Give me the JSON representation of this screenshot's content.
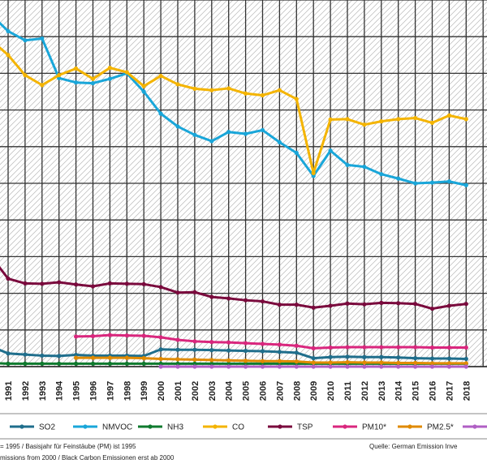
{
  "chart_data": {
    "type": "line",
    "title": "",
    "xlabel": "",
    "ylabel": "",
    "x": [
      "1991",
      "1992",
      "1993",
      "1994",
      "1995",
      "1996",
      "1997",
      "1998",
      "1999",
      "2000",
      "2001",
      "2002",
      "2003",
      "2004",
      "2005",
      "2006",
      "2007",
      "2008",
      "2009",
      "2010",
      "2011",
      "2012",
      "2013",
      "2014",
      "2015",
      "2016",
      "2017",
      "2018"
    ],
    "x_range": [
      1990,
      2018
    ],
    "ylim": [
      0,
      100
    ],
    "grid": true,
    "hatched_background": true,
    "legend_position": "bottom",
    "series": [
      {
        "name": "SO2",
        "color": "#1f6e8c",
        "values": [
          [
            1990,
            5.5
          ],
          [
            1991,
            3.6
          ],
          [
            1992,
            3.3
          ],
          [
            1993,
            3.0
          ],
          [
            1994,
            2.9
          ],
          [
            1995,
            3.2
          ],
          [
            1996,
            3.0
          ],
          [
            1997,
            3.0
          ],
          [
            1998,
            3.0
          ],
          [
            1999,
            2.9
          ],
          [
            2000,
            4.7
          ],
          [
            2001,
            4.6
          ],
          [
            2002,
            4.6
          ],
          [
            2003,
            4.5
          ],
          [
            2004,
            4.4
          ],
          [
            2005,
            4.3
          ],
          [
            2006,
            4.2
          ],
          [
            2007,
            4.0
          ],
          [
            2008,
            3.8
          ],
          [
            2009,
            2.3
          ],
          [
            2010,
            2.6
          ],
          [
            2011,
            2.7
          ],
          [
            2012,
            2.6
          ],
          [
            2013,
            2.6
          ],
          [
            2014,
            2.5
          ],
          [
            2015,
            2.3
          ],
          [
            2016,
            2.2
          ],
          [
            2017,
            2.2
          ],
          [
            2018,
            2.1
          ]
        ]
      },
      {
        "name": "NMVOC",
        "color": "#19a6d9",
        "values": [
          [
            1990,
            96.0
          ],
          [
            1991,
            91.5
          ],
          [
            1992,
            89.0
          ],
          [
            1993,
            89.5
          ],
          [
            1994,
            78.7
          ],
          [
            1995,
            77.5
          ],
          [
            1996,
            77.3
          ],
          [
            1997,
            78.5
          ],
          [
            1998,
            80.0
          ],
          [
            1999,
            75.0
          ],
          [
            2000,
            69.0
          ],
          [
            2001,
            65.5
          ],
          [
            2002,
            63.2
          ],
          [
            2003,
            61.5
          ],
          [
            2004,
            64.0
          ],
          [
            2005,
            63.5
          ],
          [
            2006,
            64.5
          ],
          [
            2007,
            61.2
          ],
          [
            2008,
            58.3
          ],
          [
            2009,
            52.0
          ],
          [
            2010,
            58.9
          ],
          [
            2011,
            55.0
          ],
          [
            2012,
            54.5
          ],
          [
            2013,
            52.5
          ],
          [
            2014,
            51.3
          ],
          [
            2015,
            50.0
          ],
          [
            2016,
            50.2
          ],
          [
            2017,
            50.5
          ],
          [
            2018,
            49.5
          ]
        ]
      },
      {
        "name": "NH3",
        "color": "#0f7a2e",
        "values": [
          [
            1990,
            1.0
          ],
          [
            1991,
            0.8
          ],
          [
            1992,
            0.8
          ],
          [
            1993,
            0.8
          ],
          [
            1994,
            0.8
          ],
          [
            1995,
            0.8
          ],
          [
            1996,
            0.8
          ],
          [
            1997,
            0.8
          ],
          [
            1998,
            0.8
          ],
          [
            1999,
            0.8
          ],
          [
            2000,
            0.8
          ],
          [
            2001,
            0.8
          ],
          [
            2002,
            0.8
          ],
          [
            2003,
            0.8
          ],
          [
            2004,
            0.8
          ],
          [
            2005,
            0.8
          ],
          [
            2006,
            0.8
          ],
          [
            2007,
            0.8
          ],
          [
            2008,
            0.8
          ],
          [
            2009,
            0.8
          ],
          [
            2010,
            0.8
          ],
          [
            2011,
            0.8
          ],
          [
            2012,
            0.8
          ],
          [
            2013,
            0.8
          ],
          [
            2014,
            0.8
          ],
          [
            2015,
            0.8
          ],
          [
            2016,
            0.8
          ],
          [
            2017,
            0.8
          ],
          [
            2018,
            0.8
          ]
        ]
      },
      {
        "name": "CO",
        "color": "#f4b400",
        "values": [
          [
            1990,
            89.0
          ],
          [
            1991,
            85.0
          ],
          [
            1992,
            79.5
          ],
          [
            1993,
            76.8
          ],
          [
            1994,
            79.5
          ],
          [
            1995,
            81.3
          ],
          [
            1996,
            78.5
          ],
          [
            1997,
            81.5
          ],
          [
            1998,
            80.3
          ],
          [
            1999,
            76.5
          ],
          [
            2000,
            79.3
          ],
          [
            2001,
            77.0
          ],
          [
            2002,
            75.8
          ],
          [
            2003,
            75.4
          ],
          [
            2004,
            75.9
          ],
          [
            2005,
            74.5
          ],
          [
            2006,
            74.0
          ],
          [
            2007,
            75.4
          ],
          [
            2008,
            73.0
          ],
          [
            2009,
            52.8
          ],
          [
            2010,
            67.4
          ],
          [
            2011,
            67.5
          ],
          [
            2012,
            66.0
          ],
          [
            2013,
            66.9
          ],
          [
            2014,
            67.5
          ],
          [
            2015,
            67.8
          ],
          [
            2016,
            66.5
          ],
          [
            2017,
            68.5
          ],
          [
            2018,
            67.5
          ]
        ]
      },
      {
        "name": "TSP",
        "color": "#7a0a3d",
        "values": [
          [
            1990,
            30.0
          ],
          [
            1991,
            24.0
          ],
          [
            1992,
            22.7
          ],
          [
            1993,
            22.6
          ],
          [
            1994,
            23.0
          ],
          [
            1995,
            22.4
          ],
          [
            1996,
            21.9
          ],
          [
            1997,
            22.7
          ],
          [
            1998,
            22.6
          ],
          [
            1999,
            22.5
          ],
          [
            2000,
            21.7
          ],
          [
            2001,
            20.2
          ],
          [
            2002,
            20.3
          ],
          [
            2003,
            19.0
          ],
          [
            2004,
            18.6
          ],
          [
            2005,
            18.1
          ],
          [
            2006,
            17.8
          ],
          [
            2007,
            16.9
          ],
          [
            2008,
            16.9
          ],
          [
            2009,
            16.1
          ],
          [
            2010,
            16.6
          ],
          [
            2011,
            17.2
          ],
          [
            2012,
            17.0
          ],
          [
            2013,
            17.4
          ],
          [
            2014,
            17.3
          ],
          [
            2015,
            17.1
          ],
          [
            2016,
            15.8
          ],
          [
            2017,
            16.6
          ],
          [
            2018,
            17.1
          ]
        ]
      },
      {
        "name": "PM10*",
        "color": "#d9267d",
        "values": [
          [
            1995,
            8.2
          ],
          [
            1996,
            8.3
          ],
          [
            1997,
            8.6
          ],
          [
            1998,
            8.5
          ],
          [
            1999,
            8.4
          ],
          [
            2000,
            8.0
          ],
          [
            2001,
            7.3
          ],
          [
            2002,
            6.9
          ],
          [
            2003,
            6.7
          ],
          [
            2004,
            6.6
          ],
          [
            2005,
            6.4
          ],
          [
            2006,
            6.2
          ],
          [
            2007,
            6.0
          ],
          [
            2008,
            5.7
          ],
          [
            2009,
            5.0
          ],
          [
            2010,
            5.2
          ],
          [
            2011,
            5.3
          ],
          [
            2012,
            5.3
          ],
          [
            2013,
            5.3
          ],
          [
            2014,
            5.3
          ],
          [
            2015,
            5.3
          ],
          [
            2016,
            5.2
          ],
          [
            2017,
            5.2
          ],
          [
            2018,
            5.2
          ]
        ]
      },
      {
        "name": "PM2.5*",
        "color": "#e08a00",
        "values": [
          [
            1995,
            2.4
          ],
          [
            1996,
            2.4
          ],
          [
            1997,
            2.4
          ],
          [
            1998,
            2.4
          ],
          [
            1999,
            2.3
          ],
          [
            2000,
            2.1
          ],
          [
            2001,
            2.0
          ],
          [
            2002,
            1.9
          ],
          [
            2003,
            1.8
          ],
          [
            2004,
            1.7
          ],
          [
            2005,
            1.6
          ],
          [
            2006,
            1.5
          ],
          [
            2007,
            1.5
          ],
          [
            2008,
            1.4
          ],
          [
            2009,
            1.1
          ],
          [
            2010,
            1.1
          ],
          [
            2011,
            1.2
          ],
          [
            2012,
            1.1
          ],
          [
            2013,
            1.1
          ],
          [
            2014,
            1.0
          ],
          [
            2015,
            1.0
          ],
          [
            2016,
            0.9
          ],
          [
            2017,
            0.9
          ],
          [
            2018,
            0.9
          ]
        ]
      },
      {
        "name": "",
        "color": "#b05fc4",
        "values": [
          [
            2000,
            0.0
          ],
          [
            2001,
            0.0
          ],
          [
            2002,
            0.0
          ],
          [
            2003,
            0.0
          ],
          [
            2004,
            0.0
          ],
          [
            2005,
            0.0
          ],
          [
            2006,
            0.0
          ],
          [
            2007,
            0.0
          ],
          [
            2008,
            0.0
          ],
          [
            2009,
            0.0
          ],
          [
            2010,
            0.0
          ],
          [
            2011,
            0.0
          ],
          [
            2012,
            0.0
          ],
          [
            2013,
            0.0
          ],
          [
            2014,
            0.0
          ],
          [
            2015,
            0.0
          ],
          [
            2016,
            0.0
          ],
          [
            2017,
            0.0
          ],
          [
            2018,
            0.0
          ]
        ]
      }
    ],
    "notes": [
      "= 1995 / Basisjahr für Feinstäube (PM) ist 1995",
      "missions  from 2000 / Black Carbon Emissionen erst ab 2000"
    ],
    "source": "Quelle:  German Emission Inve"
  }
}
